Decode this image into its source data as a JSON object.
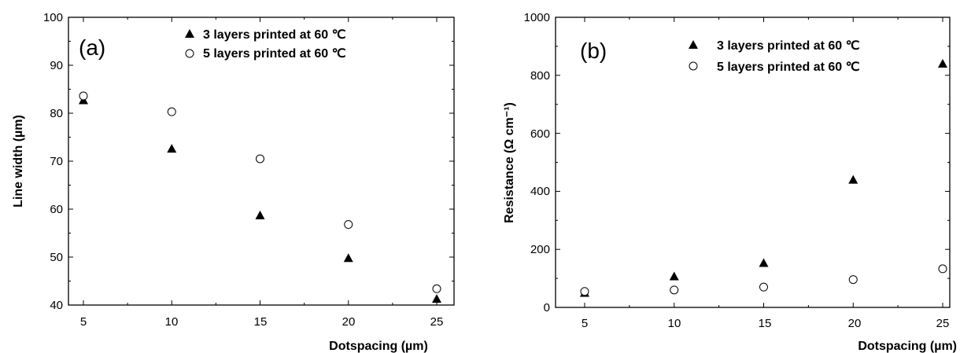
{
  "chart_data": [
    {
      "type": "scatter",
      "panel_label": "(a)",
      "xlabel": "Dotspacing (µm)",
      "ylabel": "Line width (µm)",
      "xlim": [
        4,
        26
      ],
      "ylim": [
        40,
        100
      ],
      "xticks": [
        "5",
        "10",
        "15",
        "20",
        "25"
      ],
      "yticks": [
        "40",
        "50",
        "60",
        "70",
        "80",
        "90",
        "100"
      ],
      "legend_position": "top-center",
      "grid": false,
      "series": [
        {
          "name": "3 layers printed at 60 ℃",
          "marker": "filled-triangle",
          "x": [
            5,
            10,
            15,
            20,
            25
          ],
          "y": [
            82.7,
            72.6,
            58.7,
            49.8,
            41.3
          ]
        },
        {
          "name": "5 layers printed at 60 ℃",
          "marker": "open-circle",
          "x": [
            5,
            10,
            15,
            20,
            25
          ],
          "y": [
            83.6,
            80.3,
            70.5,
            56.8,
            43.4
          ]
        }
      ]
    },
    {
      "type": "scatter",
      "panel_label": "(b)",
      "xlabel": "Dotspacing (µm)",
      "ylabel": "Resistance (Ω cm⁻¹)",
      "xlim": [
        3,
        27
      ],
      "ylim": [
        0,
        1000
      ],
      "xticks": [
        "5",
        "10",
        "15",
        "20",
        "25"
      ],
      "yticks": [
        "0",
        "200",
        "400",
        "600",
        "800",
        "1000"
      ],
      "legend_position": "top-center",
      "grid": false,
      "series": [
        {
          "name": "3 layers printed at 60 ℃",
          "marker": "filled-triangle",
          "x": [
            5,
            10,
            15,
            20,
            25
          ],
          "y": [
            50,
            107,
            153,
            440,
            840
          ]
        },
        {
          "name": "5 layers printed at 60 ℃",
          "marker": "open-circle",
          "x": [
            5,
            10,
            15,
            20,
            25
          ],
          "y": [
            55,
            60,
            70,
            96,
            133
          ]
        }
      ]
    }
  ]
}
